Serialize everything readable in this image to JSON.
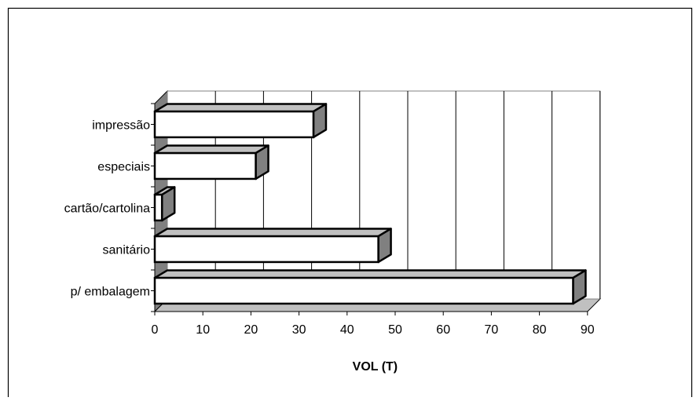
{
  "chart_data": {
    "type": "bar",
    "orientation": "horizontal",
    "style": "3d",
    "categories": [
      "impressão",
      "especiais",
      "cartão/cartolina",
      "sanitário",
      "p/ embalagem"
    ],
    "values": [
      33,
      21,
      1.5,
      46.5,
      87
    ],
    "xlabel": "VOL (T)",
    "ylabel": "",
    "xlim": [
      0,
      90
    ],
    "x_ticks": [
      0,
      10,
      20,
      30,
      40,
      50,
      60,
      70,
      80,
      90
    ],
    "grid": "vertical",
    "legend": "none",
    "colors": {
      "bar_face": "#ffffff",
      "bar_top": "#c0c0c0",
      "bar_side": "#808080",
      "back_wall": "#ffffff",
      "left_wall": "#808080",
      "floor": "#c0c0c0",
      "grid": "#000000"
    }
  }
}
